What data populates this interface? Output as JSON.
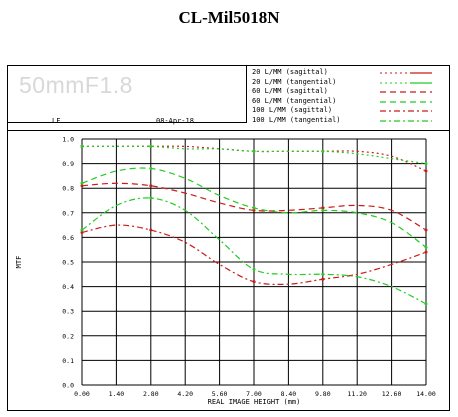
{
  "page_title": "CL-Mil5018N",
  "lens_name": "50mmF1.8",
  "lf_label": "LF",
  "date": "08-Apr-18",
  "colors": {
    "sagittal": "#cc1a1a",
    "tangential": "#22cc22"
  },
  "legend": [
    {
      "label": "20 L/MM (sagittal)",
      "color": "#cc1a1a",
      "dash": "2,3",
      "freq": 20
    },
    {
      "label": "20 L/MM (tangential)",
      "color": "#22cc22",
      "dash": "2,3",
      "freq": 20
    },
    {
      "label": "60 L/MM (sagittal)",
      "color": "#cc1a1a",
      "dash": "6,4",
      "freq": 60
    },
    {
      "label": "60 L/MM (tangential)",
      "color": "#22cc22",
      "dash": "6,4",
      "freq": 60
    },
    {
      "label": "100 L/MM (sagittal)",
      "color": "#cc1a1a",
      "dash": "6,3,2,3",
      "freq": 100
    },
    {
      "label": "100 L/MM (tangential)",
      "color": "#22cc22",
      "dash": "6,3,2,3",
      "freq": 100
    }
  ],
  "chart_data": {
    "type": "line",
    "title": "",
    "xlabel": "REAL IMAGE HEIGHT (mm)",
    "ylabel": "MTF",
    "xlim": [
      0,
      14
    ],
    "ylim": [
      0,
      1
    ],
    "xticks": [
      "0.00",
      "1.40",
      "2.80",
      "4.20",
      "5.60",
      "7.00",
      "8.40",
      "9.80",
      "11.20",
      "12.60",
      "14.00"
    ],
    "yticks": [
      "0.0",
      "0.1",
      "0.2",
      "0.3",
      "0.4",
      "0.5",
      "0.6",
      "0.7",
      "0.8",
      "0.9",
      "1.0"
    ],
    "grid": true,
    "x": [
      0,
      1.4,
      2.8,
      4.2,
      5.6,
      7.0,
      8.4,
      9.8,
      11.2,
      12.6,
      14.0
    ],
    "series": [
      {
        "name": "20 L/MM (sagittal)",
        "values": [
          0.97,
          0.97,
          0.97,
          0.97,
          0.96,
          0.95,
          0.95,
          0.95,
          0.95,
          0.93,
          0.87
        ]
      },
      {
        "name": "20 L/MM (tangential)",
        "values": [
          0.97,
          0.97,
          0.97,
          0.96,
          0.96,
          0.95,
          0.95,
          0.95,
          0.94,
          0.92,
          0.9
        ]
      },
      {
        "name": "60 L/MM (sagittal)",
        "values": [
          0.81,
          0.82,
          0.81,
          0.78,
          0.74,
          0.71,
          0.71,
          0.72,
          0.73,
          0.71,
          0.63
        ]
      },
      {
        "name": "60 L/MM (tangential)",
        "values": [
          0.82,
          0.87,
          0.88,
          0.84,
          0.77,
          0.72,
          0.7,
          0.71,
          0.7,
          0.66,
          0.56
        ]
      },
      {
        "name": "100 L/MM (sagittal)",
        "values": [
          0.62,
          0.65,
          0.63,
          0.58,
          0.49,
          0.42,
          0.41,
          0.43,
          0.45,
          0.49,
          0.54
        ]
      },
      {
        "name": "100 L/MM (tangential)",
        "values": [
          0.63,
          0.73,
          0.76,
          0.71,
          0.59,
          0.47,
          0.45,
          0.45,
          0.44,
          0.4,
          0.33
        ]
      }
    ]
  }
}
